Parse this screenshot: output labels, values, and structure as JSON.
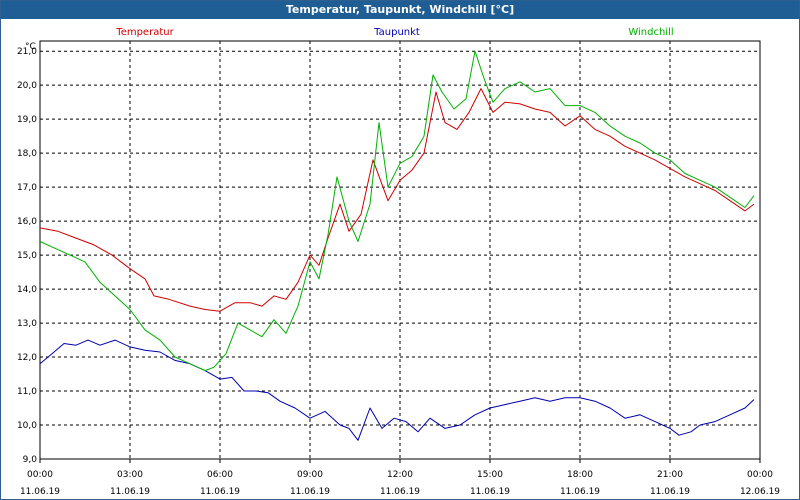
{
  "window": {
    "title": "Temperatur, Taupunkt, Windchill [°C]"
  },
  "colors": {
    "temperatur": "#d00000",
    "taupunkt": "#0000b0",
    "windchill": "#00b000",
    "grid": "#000000",
    "titlebar": "#1f5d95"
  },
  "chart_data": {
    "type": "line",
    "title": "Temperatur, Taupunkt, Windchill [°C]",
    "ylabel": "°C",
    "ylim": [
      9.0,
      21.3
    ],
    "xlim": [
      0,
      24
    ],
    "grid": true,
    "legend_position": "top",
    "y_ticks": [
      "9,0",
      "10,0",
      "11,0",
      "12,0",
      "13,0",
      "14,0",
      "15,0",
      "16,0",
      "17,0",
      "18,0",
      "19,0",
      "20,0",
      "21,0"
    ],
    "y_tick_values": [
      9,
      10,
      11,
      12,
      13,
      14,
      15,
      16,
      17,
      18,
      19,
      20,
      21
    ],
    "x_ticks": [
      {
        "time": "00:00",
        "date": "11.06.19"
      },
      {
        "time": "03:00",
        "date": "11.06.19"
      },
      {
        "time": "06:00",
        "date": "11.06.19"
      },
      {
        "time": "09:00",
        "date": "11.06.19"
      },
      {
        "time": "12:00",
        "date": "11.06.19"
      },
      {
        "time": "15:00",
        "date": "11.06.19"
      },
      {
        "time": "18:00",
        "date": "11.06.19"
      },
      {
        "time": "21:00",
        "date": "11.06.19"
      },
      {
        "time": "00:00",
        "date": "12.06.19"
      }
    ],
    "x_tick_hours": [
      0,
      3,
      6,
      9,
      12,
      15,
      18,
      21,
      24
    ],
    "series": [
      {
        "name": "Temperatur",
        "color": "#d00000",
        "points": [
          [
            0,
            15.8
          ],
          [
            0.6,
            15.7
          ],
          [
            1.2,
            15.5
          ],
          [
            1.8,
            15.3
          ],
          [
            2.4,
            15.0
          ],
          [
            3.0,
            14.6
          ],
          [
            3.5,
            14.3
          ],
          [
            3.8,
            13.8
          ],
          [
            4.3,
            13.7
          ],
          [
            5.0,
            13.5
          ],
          [
            5.5,
            13.4
          ],
          [
            6.0,
            13.35
          ],
          [
            6.5,
            13.6
          ],
          [
            7.0,
            13.6
          ],
          [
            7.4,
            13.5
          ],
          [
            7.8,
            13.8
          ],
          [
            8.2,
            13.7
          ],
          [
            8.6,
            14.2
          ],
          [
            9.0,
            15.0
          ],
          [
            9.3,
            14.7
          ],
          [
            9.6,
            15.5
          ],
          [
            10.0,
            16.5
          ],
          [
            10.3,
            15.7
          ],
          [
            10.7,
            16.2
          ],
          [
            11.1,
            17.8
          ],
          [
            11.6,
            16.6
          ],
          [
            12.0,
            17.2
          ],
          [
            12.4,
            17.5
          ],
          [
            12.8,
            18.0
          ],
          [
            13.2,
            19.8
          ],
          [
            13.5,
            18.9
          ],
          [
            13.9,
            18.7
          ],
          [
            14.3,
            19.2
          ],
          [
            14.7,
            19.9
          ],
          [
            15.1,
            19.2
          ],
          [
            15.5,
            19.5
          ],
          [
            16.0,
            19.45
          ],
          [
            16.5,
            19.3
          ],
          [
            17.0,
            19.2
          ],
          [
            17.5,
            18.8
          ],
          [
            18.0,
            19.1
          ],
          [
            18.5,
            18.7
          ],
          [
            19.0,
            18.5
          ],
          [
            19.5,
            18.2
          ],
          [
            20.0,
            18.0
          ],
          [
            20.5,
            17.8
          ],
          [
            21.0,
            17.55
          ],
          [
            21.5,
            17.3
          ],
          [
            22.0,
            17.1
          ],
          [
            22.5,
            16.9
          ],
          [
            23.0,
            16.6
          ],
          [
            23.5,
            16.3
          ],
          [
            23.8,
            16.5
          ]
        ]
      },
      {
        "name": "Taupunkt",
        "color": "#0000b0",
        "points": [
          [
            0,
            11.8
          ],
          [
            0.4,
            12.1
          ],
          [
            0.8,
            12.4
          ],
          [
            1.2,
            12.35
          ],
          [
            1.6,
            12.5
          ],
          [
            2.0,
            12.35
          ],
          [
            2.5,
            12.5
          ],
          [
            3.0,
            12.3
          ],
          [
            3.5,
            12.2
          ],
          [
            4.0,
            12.15
          ],
          [
            4.5,
            11.9
          ],
          [
            5.0,
            11.8
          ],
          [
            5.5,
            11.6
          ],
          [
            6.0,
            11.35
          ],
          [
            6.4,
            11.4
          ],
          [
            6.8,
            11.0
          ],
          [
            7.2,
            11.0
          ],
          [
            7.6,
            10.95
          ],
          [
            8.0,
            10.7
          ],
          [
            8.5,
            10.5
          ],
          [
            9.0,
            10.2
          ],
          [
            9.5,
            10.4
          ],
          [
            10.0,
            10.0
          ],
          [
            10.3,
            9.9
          ],
          [
            10.6,
            9.55
          ],
          [
            11.0,
            10.5
          ],
          [
            11.4,
            9.9
          ],
          [
            11.8,
            10.2
          ],
          [
            12.2,
            10.1
          ],
          [
            12.6,
            9.8
          ],
          [
            13.0,
            10.2
          ],
          [
            13.5,
            9.9
          ],
          [
            14.0,
            10.0
          ],
          [
            14.5,
            10.3
          ],
          [
            15.0,
            10.5
          ],
          [
            15.5,
            10.6
          ],
          [
            16.0,
            10.7
          ],
          [
            16.5,
            10.8
          ],
          [
            17.0,
            10.7
          ],
          [
            17.5,
            10.8
          ],
          [
            18.0,
            10.8
          ],
          [
            18.5,
            10.7
          ],
          [
            19.0,
            10.5
          ],
          [
            19.5,
            10.2
          ],
          [
            20.0,
            10.3
          ],
          [
            20.5,
            10.1
          ],
          [
            21.0,
            9.9
          ],
          [
            21.3,
            9.7
          ],
          [
            21.7,
            9.8
          ],
          [
            22.0,
            10.0
          ],
          [
            22.5,
            10.1
          ],
          [
            23.0,
            10.3
          ],
          [
            23.5,
            10.5
          ],
          [
            23.8,
            10.75
          ]
        ]
      },
      {
        "name": "Windchill",
        "color": "#00b000",
        "points": [
          [
            0,
            15.4
          ],
          [
            0.5,
            15.2
          ],
          [
            1.0,
            15.0
          ],
          [
            1.5,
            14.8
          ],
          [
            2.0,
            14.2
          ],
          [
            2.5,
            13.8
          ],
          [
            3.0,
            13.4
          ],
          [
            3.5,
            12.8
          ],
          [
            4.0,
            12.5
          ],
          [
            4.5,
            12.0
          ],
          [
            5.0,
            11.8
          ],
          [
            5.5,
            11.6
          ],
          [
            5.8,
            11.7
          ],
          [
            6.2,
            12.1
          ],
          [
            6.6,
            13.0
          ],
          [
            7.0,
            12.8
          ],
          [
            7.4,
            12.6
          ],
          [
            7.8,
            13.1
          ],
          [
            8.2,
            12.7
          ],
          [
            8.6,
            13.5
          ],
          [
            9.0,
            14.8
          ],
          [
            9.3,
            14.3
          ],
          [
            9.6,
            15.6
          ],
          [
            9.9,
            17.3
          ],
          [
            10.3,
            16.0
          ],
          [
            10.6,
            15.4
          ],
          [
            11.0,
            16.5
          ],
          [
            11.3,
            18.9
          ],
          [
            11.6,
            17.0
          ],
          [
            12.0,
            17.7
          ],
          [
            12.4,
            17.9
          ],
          [
            12.8,
            18.5
          ],
          [
            13.1,
            20.3
          ],
          [
            13.4,
            19.8
          ],
          [
            13.8,
            19.3
          ],
          [
            14.2,
            19.6
          ],
          [
            14.5,
            21.0
          ],
          [
            14.8,
            20.2
          ],
          [
            15.1,
            19.5
          ],
          [
            15.5,
            19.9
          ],
          [
            16.0,
            20.1
          ],
          [
            16.5,
            19.8
          ],
          [
            17.0,
            19.9
          ],
          [
            17.5,
            19.4
          ],
          [
            18.0,
            19.4
          ],
          [
            18.5,
            19.2
          ],
          [
            19.0,
            18.8
          ],
          [
            19.5,
            18.5
          ],
          [
            20.0,
            18.3
          ],
          [
            20.5,
            18.0
          ],
          [
            21.0,
            17.8
          ],
          [
            21.5,
            17.4
          ],
          [
            22.0,
            17.2
          ],
          [
            22.5,
            17.0
          ],
          [
            23.0,
            16.7
          ],
          [
            23.5,
            16.4
          ],
          [
            23.8,
            16.75
          ]
        ]
      }
    ]
  }
}
